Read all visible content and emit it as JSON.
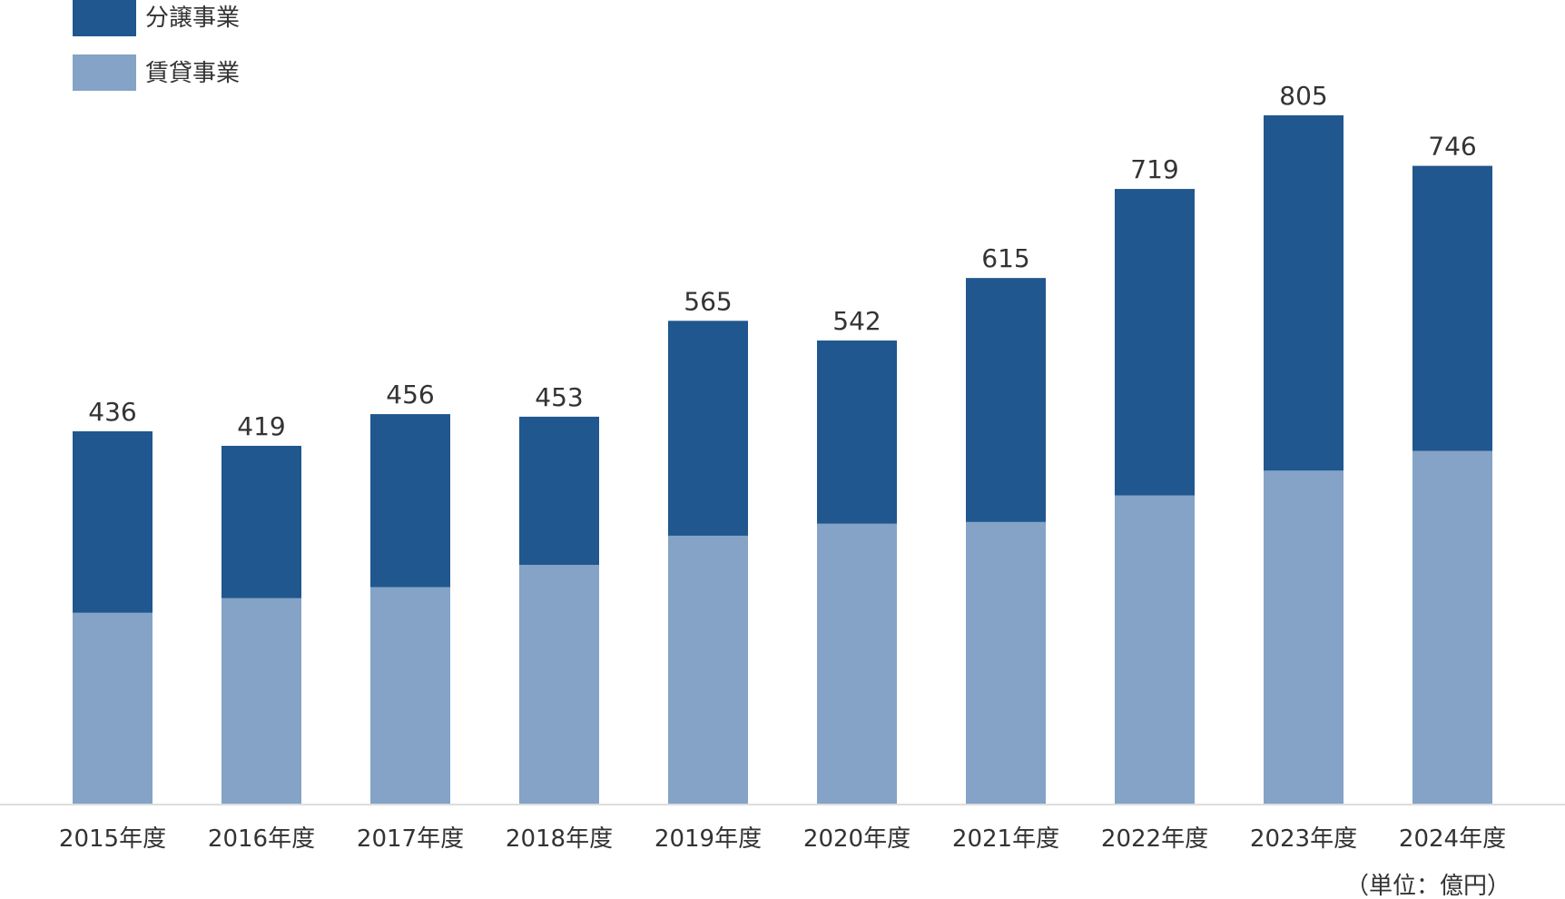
{
  "chart_data": {
    "type": "bar",
    "stacked": true,
    "categories": [
      "2015年度",
      "2016年度",
      "2017年度",
      "2018年度",
      "2019年度",
      "2020年度",
      "2021年度",
      "2022年度",
      "2023年度",
      "2024年度"
    ],
    "series": [
      {
        "name": "賃貸事業",
        "color": "#84a3c7",
        "values": [
          224,
          241,
          254,
          280,
          314,
          328,
          330,
          361,
          390,
          413
        ]
      },
      {
        "name": "分譲事業",
        "color": "#20578e",
        "values": [
          212,
          178,
          202,
          173,
          251,
          214,
          285,
          358,
          415,
          333
        ]
      }
    ],
    "totals": [
      436,
      419,
      456,
      453,
      565,
      542,
      615,
      719,
      805,
      746
    ],
    "ylim": [
      0,
      805
    ],
    "grid": false,
    "legend": "top-left",
    "unit_note": "（単位：億円）",
    "axis_color": "#dddddd"
  }
}
